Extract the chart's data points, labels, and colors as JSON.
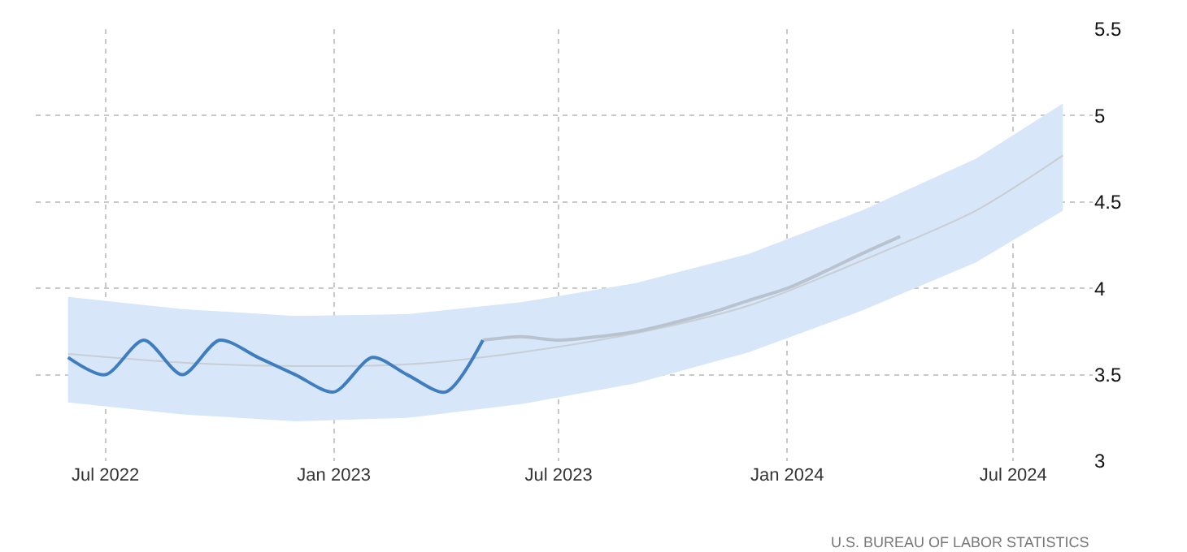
{
  "chart_data": {
    "type": "line",
    "xlim": [
      "2022-05-06",
      "2024-09-03"
    ],
    "xticks": [
      {
        "value": "2022-07-01",
        "label": "Jul 2022"
      },
      {
        "value": "2023-01-01",
        "label": "Jan 2023"
      },
      {
        "value": "2023-07-01",
        "label": "Jul 2023"
      },
      {
        "value": "2024-01-01",
        "label": "Jan 2024"
      },
      {
        "value": "2024-07-01",
        "label": "Jul 2024"
      }
    ],
    "ylim": [
      3,
      5.5
    ],
    "yticks": [
      3,
      3.5,
      4,
      4.5,
      5,
      5.5
    ],
    "grid": true,
    "marker": "none",
    "series": [
      {
        "color": "#c9cdd4",
        "x": [
          "2022-06",
          "2022-09",
          "2022-12",
          "2023-03",
          "2023-06",
          "2023-09",
          "2023-12",
          "2024-03",
          "2024-06",
          "2024-08-10"
        ],
        "values": [
          3.62,
          3.57,
          3.55,
          3.56,
          3.63,
          3.74,
          3.9,
          4.16,
          4.45,
          4.77
        ],
        "lower": [
          3.34,
          3.27,
          3.23,
          3.25,
          3.33,
          3.45,
          3.63,
          3.87,
          4.15,
          4.45
        ],
        "upper": [
          3.95,
          3.88,
          3.84,
          3.85,
          3.92,
          4.03,
          4.2,
          4.45,
          4.75,
          5.07
        ]
      },
      {
        "color": "#b9c3d0",
        "x": [
          "2023-05",
          "2023-06",
          "2023-07",
          "2023-08",
          "2023-09",
          "2023-10",
          "2023-11",
          "2023-12",
          "2024-01",
          "2024-02",
          "2024-03",
          "2024-04"
        ],
        "values": [
          3.7,
          3.72,
          3.7,
          3.72,
          3.75,
          3.8,
          3.86,
          3.93,
          4.0,
          4.1,
          4.2,
          4.3
        ]
      },
      {
        "color": "#3f7dc1",
        "x": [
          "2022-06",
          "2022-07",
          "2022-08",
          "2022-09",
          "2022-10",
          "2022-11",
          "2022-12",
          "2023-01",
          "2023-02",
          "2023-03",
          "2023-04",
          "2023-05"
        ],
        "values": [
          3.6,
          3.5,
          3.7,
          3.5,
          3.7,
          3.6,
          3.5,
          3.4,
          3.6,
          3.5,
          3.4,
          3.7
        ]
      }
    ],
    "annotations": [
      "U.S. BUREAU OF LABOR STATISTICS"
    ]
  }
}
